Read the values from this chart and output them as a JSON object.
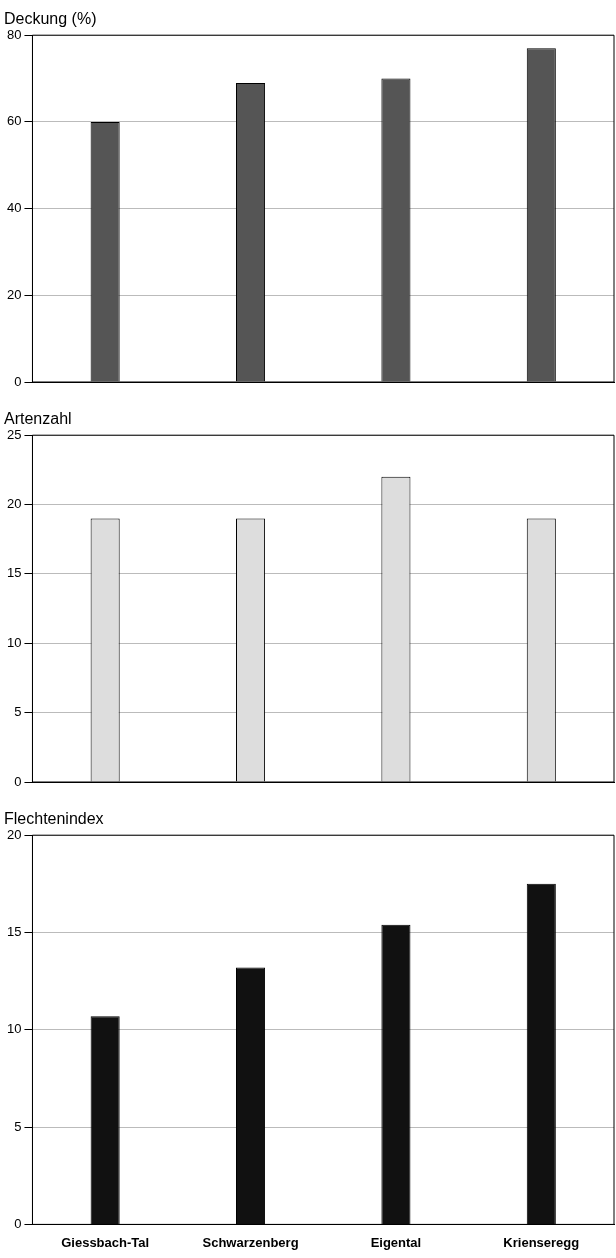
{
  "chart_data": [
    {
      "type": "bar",
      "title": "Deckung (%)",
      "categories": [
        null,
        null,
        null,
        null
      ],
      "values": [
        60,
        69,
        70,
        77
      ],
      "color": "#555555",
      "ylim": [
        0,
        80
      ],
      "yticks": [
        0,
        20,
        40,
        60,
        80
      ],
      "grid": "y",
      "legend": false,
      "tick_labels": "y"
    },
    {
      "type": "bar",
      "title": "Artenzahl",
      "categories": [
        null,
        null,
        null,
        null
      ],
      "values": [
        19,
        19,
        22,
        19
      ],
      "color": "#dddddd",
      "ylim": [
        0,
        25
      ],
      "yticks": [
        0,
        5,
        10,
        15,
        20,
        25
      ],
      "grid": "y",
      "legend": false,
      "tick_labels": "y"
    },
    {
      "type": "bar",
      "title": "Flechtenindex",
      "categories": [
        "Giessbach-Tal",
        "Schwarzenberg",
        "Eigental",
        "Krienseregg"
      ],
      "values": [
        10.7,
        13.2,
        15.4,
        17.5
      ],
      "color": "#111111",
      "ylim": [
        0,
        20
      ],
      "yticks": [
        0,
        5,
        10,
        15,
        20
      ],
      "grid": "y",
      "legend": false
    }
  ]
}
